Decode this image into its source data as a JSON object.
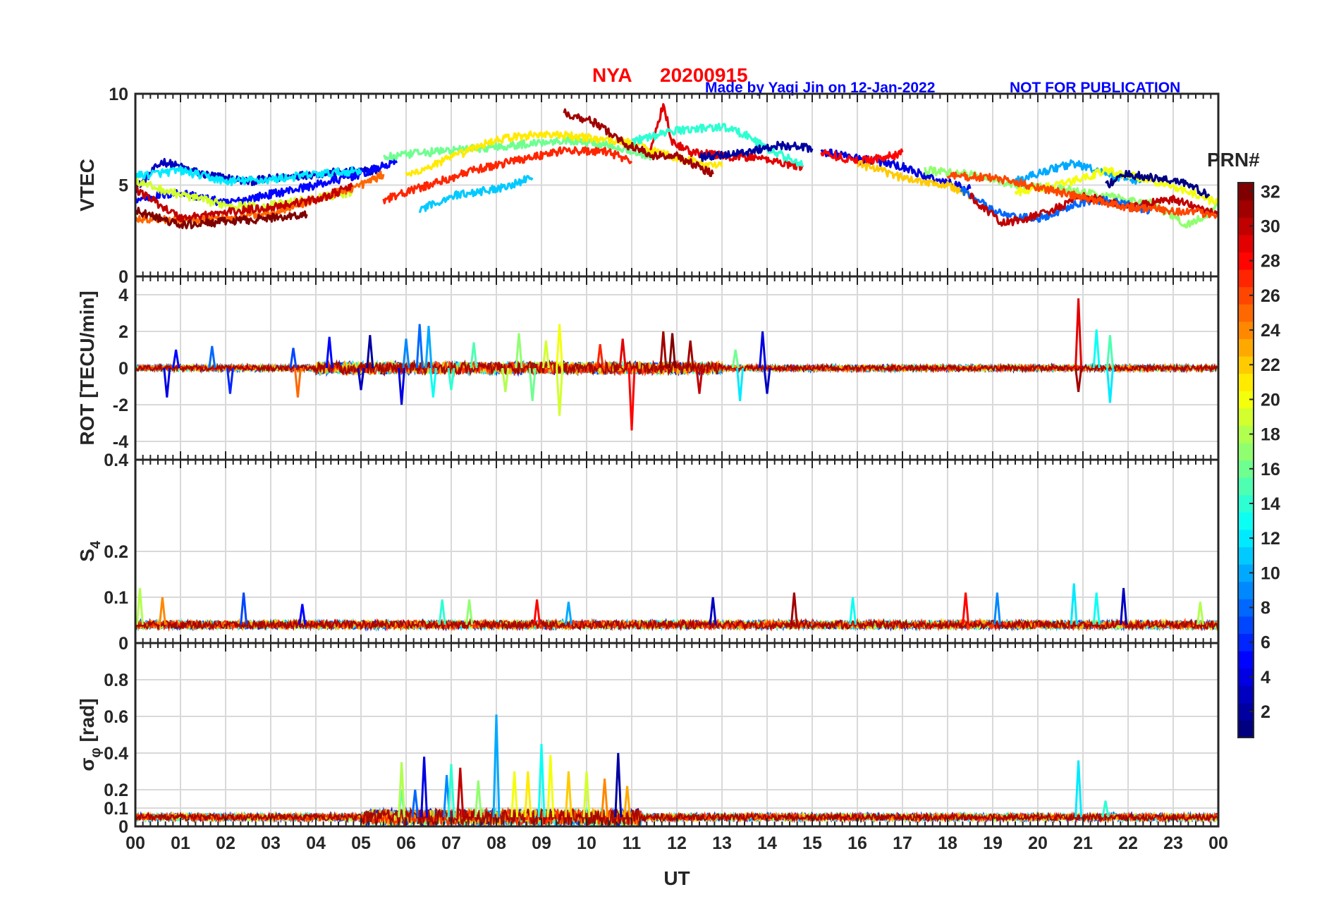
{
  "figure": {
    "title_station": "NYA",
    "title_date": "20200915",
    "credit": "Made by Yaqi Jin on 12-Jan-2022",
    "notice": "NOT FOR PUBLICATION",
    "colormap": "jet"
  },
  "chart_data": [
    {
      "type": "line",
      "name": "vtec",
      "ylabel": "VTEC",
      "ylim": [
        0,
        10
      ],
      "yticks": [
        "0",
        "5",
        "10"
      ],
      "yticks_values": [
        0,
        5,
        10
      ],
      "xlim": [
        0,
        24
      ],
      "grid": true,
      "series_summary": [
        {
          "prn": 3,
          "x": [
            0.0,
            0.6,
            1.5,
            2.5,
            3.5,
            4.5,
            5.4
          ],
          "y": [
            4.8,
            6.3,
            5.6,
            5.2,
            5.5,
            5.7,
            5.8
          ]
        },
        {
          "prn": 5,
          "x": [
            0.0,
            1.0,
            2.0,
            3.0,
            4.0,
            5.0,
            5.8
          ],
          "y": [
            4.2,
            4.6,
            4.0,
            4.5,
            5.0,
            5.6,
            6.3
          ]
        },
        {
          "prn": 12,
          "x": [
            0.0,
            1.0,
            2.0,
            3.0,
            4.0,
            5.0
          ],
          "y": [
            5.5,
            5.8,
            5.2,
            5.3,
            5.6,
            5.8
          ]
        },
        {
          "prn": 19,
          "x": [
            0.0,
            0.8,
            1.8,
            2.8,
            3.8,
            4.8
          ],
          "y": [
            5.2,
            4.6,
            4.0,
            3.8,
            4.2,
            4.6
          ]
        },
        {
          "prn": 25,
          "x": [
            0.0,
            1.0,
            2.0,
            3.0,
            4.0,
            5.0,
            5.5
          ],
          "y": [
            3.2,
            3.1,
            3.2,
            3.5,
            4.2,
            5.0,
            5.6
          ]
        },
        {
          "prn": 30,
          "x": [
            0.0,
            1.0,
            2.0,
            3.0,
            4.0,
            4.8
          ],
          "y": [
            4.8,
            3.2,
            3.5,
            3.8,
            4.2,
            4.9
          ]
        },
        {
          "prn": 32,
          "x": [
            0.0,
            1.0,
            2.0,
            3.0,
            3.8
          ],
          "y": [
            3.6,
            2.8,
            3.0,
            3.2,
            3.4
          ]
        },
        {
          "prn": 16,
          "x": [
            5.5,
            6.5,
            7.5,
            8.5,
            9.5,
            10.5,
            11.5
          ],
          "y": [
            6.5,
            6.8,
            7.0,
            7.2,
            7.5,
            7.2,
            6.5
          ]
        },
        {
          "prn": 21,
          "x": [
            6.0,
            7.0,
            8.0,
            9.0,
            10.0,
            11.0,
            12.0,
            13.0
          ],
          "y": [
            5.5,
            6.5,
            7.5,
            7.8,
            7.6,
            7.3,
            6.5,
            6.0
          ]
        },
        {
          "prn": 27,
          "x": [
            5.5,
            6.5,
            7.5,
            8.5,
            9.5,
            10.5,
            11.0
          ],
          "y": [
            4.2,
            5.0,
            5.8,
            6.4,
            6.9,
            6.8,
            6.3
          ]
        },
        {
          "prn": 11,
          "x": [
            6.3,
            7.0,
            8.0,
            8.8
          ],
          "y": [
            3.6,
            4.4,
            4.8,
            5.4
          ]
        },
        {
          "prn": 31,
          "x": [
            9.5,
            10.2,
            10.9,
            11.5,
            12.0,
            12.8
          ],
          "y": [
            9.0,
            8.4,
            7.2,
            6.6,
            6.6,
            5.6
          ]
        },
        {
          "prn": 29,
          "x": [
            11.4,
            11.7,
            11.9,
            12.3,
            13.0,
            13.8,
            14.8
          ],
          "y": [
            7.0,
            9.4,
            7.4,
            6.8,
            6.6,
            6.5,
            6.0
          ]
        },
        {
          "prn": 14,
          "x": [
            11.0,
            12.0,
            13.0,
            13.5,
            14.0,
            14.8
          ],
          "y": [
            7.4,
            8.0,
            8.2,
            7.8,
            7.0,
            6.1
          ]
        },
        {
          "prn": 2,
          "x": [
            12.5,
            13.5,
            14.3,
            15.0
          ],
          "y": [
            6.5,
            6.8,
            7.2,
            7.0
          ]
        },
        {
          "prn": 4,
          "x": [
            15.2,
            16.0,
            17.0,
            17.6,
            18.5
          ],
          "y": [
            6.8,
            6.5,
            6.0,
            5.4,
            4.8
          ]
        },
        {
          "prn": 28,
          "x": [
            15.2,
            16.0,
            16.8,
            17.0
          ],
          "y": [
            6.8,
            6.3,
            6.6,
            6.8
          ]
        },
        {
          "prn": 22,
          "x": [
            16.0,
            17.0,
            18.0,
            18.5
          ],
          "y": [
            6.2,
            5.4,
            5.0,
            4.4
          ]
        },
        {
          "prn": 17,
          "x": [
            17.5,
            18.5,
            19.5,
            20.5,
            21.5,
            22.5,
            23.3,
            24.0
          ],
          "y": [
            5.8,
            5.6,
            5.0,
            4.8,
            4.4,
            4.0,
            2.8,
            3.8
          ]
        },
        {
          "prn": 8,
          "x": [
            18.3,
            19.0,
            19.5,
            20.2,
            20.8,
            21.5,
            22.5
          ],
          "y": [
            4.8,
            3.6,
            3.2,
            3.2,
            4.0,
            4.2,
            3.6
          ]
        },
        {
          "prn": 10,
          "x": [
            19.5,
            20.2,
            20.8,
            21.5,
            22.3
          ],
          "y": [
            5.2,
            5.8,
            6.2,
            5.6,
            5.2
          ]
        },
        {
          "prn": 20,
          "x": [
            19.5,
            20.5,
            21.5,
            22.5,
            23.5,
            24.0
          ],
          "y": [
            4.6,
            5.0,
            5.8,
            5.3,
            4.5,
            4.0
          ]
        },
        {
          "prn": 1,
          "x": [
            21.5,
            22.0,
            22.5,
            23.2,
            23.8
          ],
          "y": [
            5.0,
            5.6,
            5.4,
            5.2,
            4.4
          ]
        },
        {
          "prn": 30,
          "x": [
            18.5,
            19.2,
            19.8,
            20.5,
            21.0,
            22.0,
            23.0,
            24.0
          ],
          "y": [
            4.4,
            2.9,
            3.2,
            3.8,
            4.4,
            3.8,
            4.2,
            3.4
          ]
        },
        {
          "prn": 26,
          "x": [
            18.0,
            19.0,
            20.0,
            21.0,
            22.0,
            23.0,
            24.0
          ],
          "y": [
            5.5,
            5.4,
            4.9,
            4.3,
            3.8,
            3.6,
            3.4
          ]
        }
      ]
    },
    {
      "type": "line",
      "name": "rot",
      "ylabel": "ROT [TECU/min]",
      "ylim": [
        -5,
        5
      ],
      "yticks": [
        "-4",
        "-2",
        "0",
        "2",
        "4"
      ],
      "yticks_values": [
        -4,
        -2,
        0,
        2,
        4
      ],
      "xlim": [
        0,
        24
      ],
      "grid": true,
      "baseline": 0,
      "spikes": [
        {
          "x": 0.7,
          "y": -1.6,
          "prn": 4
        },
        {
          "x": 0.9,
          "y": 1.0,
          "prn": 5
        },
        {
          "x": 1.7,
          "y": 1.2,
          "prn": 8
        },
        {
          "x": 2.1,
          "y": -1.4,
          "prn": 6
        },
        {
          "x": 3.5,
          "y": 1.1,
          "prn": 7
        },
        {
          "x": 3.6,
          "y": -1.6,
          "prn": 25
        },
        {
          "x": 4.3,
          "y": 1.7,
          "prn": 5
        },
        {
          "x": 5.0,
          "y": -1.2,
          "prn": 3
        },
        {
          "x": 5.2,
          "y": 1.8,
          "prn": 2
        },
        {
          "x": 5.9,
          "y": -2.0,
          "prn": 4
        },
        {
          "x": 6.0,
          "y": 1.6,
          "prn": 9
        },
        {
          "x": 6.3,
          "y": 2.4,
          "prn": 8
        },
        {
          "x": 6.5,
          "y": 2.3,
          "prn": 10
        },
        {
          "x": 6.6,
          "y": -1.6,
          "prn": 13
        },
        {
          "x": 7.0,
          "y": -1.2,
          "prn": 14
        },
        {
          "x": 7.5,
          "y": 1.4,
          "prn": 15
        },
        {
          "x": 8.2,
          "y": -1.3,
          "prn": 18
        },
        {
          "x": 8.5,
          "y": 1.9,
          "prn": 17
        },
        {
          "x": 8.8,
          "y": -1.8,
          "prn": 16
        },
        {
          "x": 9.1,
          "y": 1.5,
          "prn": 19
        },
        {
          "x": 9.4,
          "y": 2.4,
          "prn": 20
        },
        {
          "x": 9.4,
          "y": -2.6,
          "prn": 19
        },
        {
          "x": 10.3,
          "y": 1.3,
          "prn": 27
        },
        {
          "x": 10.8,
          "y": 1.6,
          "prn": 29
        },
        {
          "x": 11.0,
          "y": -3.4,
          "prn": 28
        },
        {
          "x": 11.7,
          "y": 2.0,
          "prn": 31
        },
        {
          "x": 11.9,
          "y": 1.9,
          "prn": 32
        },
        {
          "x": 12.3,
          "y": 1.5,
          "prn": 31
        },
        {
          "x": 12.5,
          "y": -1.4,
          "prn": 30
        },
        {
          "x": 13.3,
          "y": 1.0,
          "prn": 16
        },
        {
          "x": 13.4,
          "y": -1.8,
          "prn": 12
        },
        {
          "x": 13.9,
          "y": 2.0,
          "prn": 4
        },
        {
          "x": 14.0,
          "y": -1.4,
          "prn": 3
        },
        {
          "x": 20.9,
          "y": 3.8,
          "prn": 29
        },
        {
          "x": 20.9,
          "y": -1.3,
          "prn": 31
        },
        {
          "x": 21.3,
          "y": 2.1,
          "prn": 13
        },
        {
          "x": 21.6,
          "y": 1.8,
          "prn": 15
        },
        {
          "x": 21.6,
          "y": -1.9,
          "prn": 12
        }
      ]
    },
    {
      "type": "line",
      "name": "s4",
      "ylabel": "S4",
      "ylabel_main": "S",
      "ylabel_sub": "4",
      "ylim": [
        0,
        0.4
      ],
      "yticks": [
        "0",
        "0.1",
        "0.2",
        "0.4"
      ],
      "yticks_values": [
        0,
        0.1,
        0.2,
        0.4
      ],
      "xlim": [
        0,
        24
      ],
      "grid": true,
      "baseline": 0.04,
      "spikes": [
        {
          "x": 0.1,
          "y": 0.12,
          "prn": 18
        },
        {
          "x": 0.6,
          "y": 0.1,
          "prn": 24
        },
        {
          "x": 2.4,
          "y": 0.11,
          "prn": 7
        },
        {
          "x": 3.7,
          "y": 0.085,
          "prn": 5
        },
        {
          "x": 6.8,
          "y": 0.095,
          "prn": 14
        },
        {
          "x": 7.4,
          "y": 0.095,
          "prn": 17
        },
        {
          "x": 8.9,
          "y": 0.095,
          "prn": 28
        },
        {
          "x": 9.6,
          "y": 0.09,
          "prn": 10
        },
        {
          "x": 12.8,
          "y": 0.1,
          "prn": 3
        },
        {
          "x": 14.6,
          "y": 0.11,
          "prn": 31
        },
        {
          "x": 15.9,
          "y": 0.1,
          "prn": 13
        },
        {
          "x": 18.4,
          "y": 0.11,
          "prn": 28
        },
        {
          "x": 19.1,
          "y": 0.11,
          "prn": 9
        },
        {
          "x": 20.8,
          "y": 0.13,
          "prn": 12
        },
        {
          "x": 21.3,
          "y": 0.11,
          "prn": 13
        },
        {
          "x": 21.9,
          "y": 0.12,
          "prn": 3
        },
        {
          "x": 23.6,
          "y": 0.09,
          "prn": 18
        }
      ]
    },
    {
      "type": "line",
      "name": "sigma-phi",
      "ylabel": "σ φ [rad]",
      "ylabel_main": "σ",
      "ylabel_sub": "φ",
      "ylabel_unit": "[rad]",
      "ylim": [
        0,
        1
      ],
      "yticks": [
        "0",
        "0.1",
        "0.2",
        "0.4",
        "0.6",
        "0.8"
      ],
      "yticks_values": [
        0,
        0.1,
        0.2,
        0.4,
        0.6,
        0.8
      ],
      "xlim": [
        0,
        24
      ],
      "grid": true,
      "baseline": 0.05,
      "spikes": [
        {
          "x": 5.9,
          "y": 0.2,
          "prn": 15
        },
        {
          "x": 5.9,
          "y": 0.35,
          "prn": 18
        },
        {
          "x": 6.2,
          "y": 0.2,
          "prn": 8
        },
        {
          "x": 6.4,
          "y": 0.38,
          "prn": 4
        },
        {
          "x": 6.9,
          "y": 0.28,
          "prn": 9
        },
        {
          "x": 7.0,
          "y": 0.34,
          "prn": 14
        },
        {
          "x": 7.2,
          "y": 0.32,
          "prn": 30
        },
        {
          "x": 7.6,
          "y": 0.25,
          "prn": 17
        },
        {
          "x": 8.0,
          "y": 0.61,
          "prn": 10
        },
        {
          "x": 8.4,
          "y": 0.3,
          "prn": 20
        },
        {
          "x": 8.7,
          "y": 0.3,
          "prn": 21
        },
        {
          "x": 9.0,
          "y": 0.45,
          "prn": 13
        },
        {
          "x": 9.2,
          "y": 0.39,
          "prn": 20
        },
        {
          "x": 9.6,
          "y": 0.3,
          "prn": 22
        },
        {
          "x": 10.0,
          "y": 0.3,
          "prn": 19
        },
        {
          "x": 10.4,
          "y": 0.26,
          "prn": 24
        },
        {
          "x": 10.7,
          "y": 0.4,
          "prn": 2
        },
        {
          "x": 10.9,
          "y": 0.22,
          "prn": 23
        },
        {
          "x": 20.9,
          "y": 0.36,
          "prn": 12
        },
        {
          "x": 21.5,
          "y": 0.14,
          "prn": 14
        }
      ]
    }
  ],
  "x_axis": {
    "label": "UT",
    "ticks": [
      "00",
      "01",
      "02",
      "03",
      "04",
      "05",
      "06",
      "07",
      "08",
      "09",
      "10",
      "11",
      "12",
      "13",
      "14",
      "15",
      "16",
      "17",
      "18",
      "19",
      "20",
      "21",
      "22",
      "23",
      "00"
    ]
  },
  "colorbar": {
    "title": "PRN#",
    "range": [
      1,
      32
    ],
    "ticks": [
      "2",
      "4",
      "6",
      "8",
      "10",
      "12",
      "14",
      "16",
      "18",
      "20",
      "22",
      "24",
      "26",
      "28",
      "30",
      "32"
    ],
    "ticks_values": [
      2,
      4,
      6,
      8,
      10,
      12,
      14,
      16,
      18,
      20,
      22,
      24,
      26,
      28,
      30,
      32
    ]
  }
}
